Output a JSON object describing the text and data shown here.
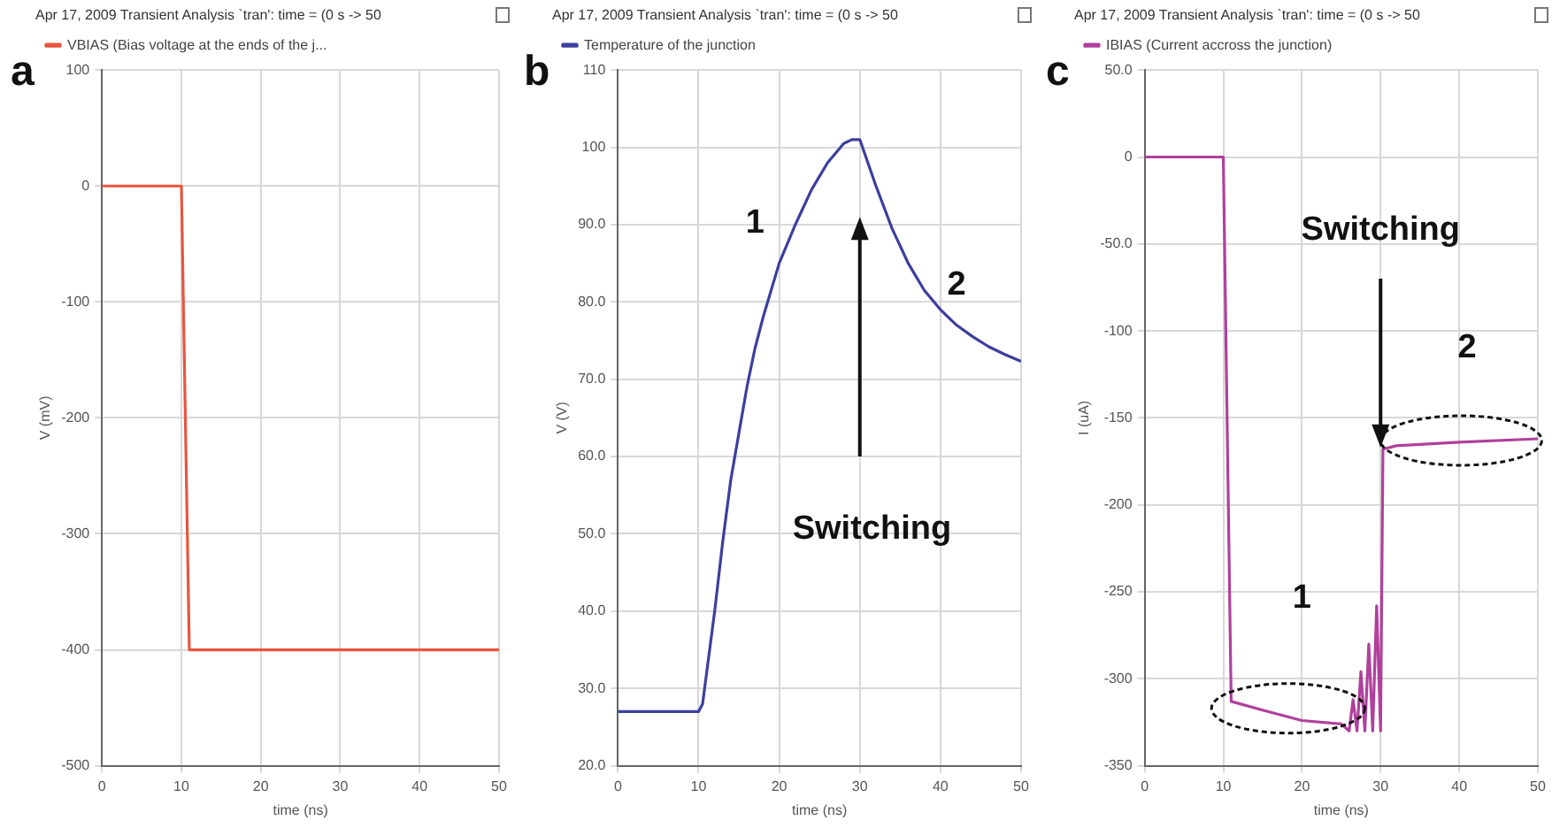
{
  "chart_data": [
    {
      "type": "line",
      "title": "Apr 17, 2009 Transient Analysis `tran': time = (0 s -> 50",
      "xlabel": "time (ns)",
      "ylabel": "V (mV)",
      "legend": "top left",
      "grid": true,
      "marker": "none",
      "line_style": "solid",
      "xlim": [
        0,
        50
      ],
      "xticks": [
        0,
        10,
        20,
        30,
        40,
        50
      ],
      "ylim": [
        -500,
        100
      ],
      "yticks": [
        -500,
        -400,
        -300,
        -200,
        -100,
        0,
        100
      ],
      "annotations": [
        "a"
      ],
      "series": [
        {
          "name": "VBIAS (Bias voltage at the ends of the j...",
          "color": "#e8553f",
          "x": [
            0,
            10,
            11,
            50
          ],
          "values": [
            0,
            0,
            -400,
            -400
          ]
        }
      ]
    },
    {
      "type": "line",
      "title": "Apr 17, 2009 Transient Analysis `tran': time = (0 s -> 50",
      "xlabel": "time (ns)",
      "ylabel": "V (V)",
      "legend": "top left",
      "grid": true,
      "marker": "none",
      "line_style": "solid",
      "xlim": [
        0,
        50
      ],
      "xticks": [
        0,
        10,
        20,
        30,
        40,
        50
      ],
      "ylim": [
        20,
        110
      ],
      "yticks": [
        {
          "value": 20,
          "label": "20.0"
        },
        {
          "value": 30,
          "label": "30.0"
        },
        {
          "value": 40,
          "label": "40.0"
        },
        {
          "value": 50,
          "label": "50.0"
        },
        {
          "value": 60,
          "label": "60.0"
        },
        {
          "value": 70,
          "label": "70.0"
        },
        {
          "value": 80,
          "label": "80.0"
        },
        {
          "value": 90,
          "label": "90.0"
        },
        100,
        110
      ],
      "annotations": [
        "b",
        "1",
        "2",
        "Switching"
      ],
      "series": [
        {
          "name": "Temperature of the junction",
          "color": "#3c3f9e",
          "x": [
            0,
            10,
            10.5,
            11,
            12,
            13,
            14,
            15,
            16,
            17,
            18,
            20,
            22,
            24,
            26,
            28,
            29,
            30,
            31,
            32,
            34,
            36,
            38,
            40,
            42,
            44,
            46,
            48,
            50
          ],
          "values": [
            27,
            27,
            28,
            32,
            40,
            49,
            57,
            63,
            69,
            74,
            78,
            85,
            90,
            94.5,
            98,
            100.5,
            101,
            101,
            98,
            95,
            89.5,
            85,
            81.5,
            79,
            77,
            75.5,
            74.2,
            73.2,
            72.3
          ]
        }
      ]
    },
    {
      "type": "line",
      "title": "Apr 17, 2009 Transient Analysis `tran': time = (0 s -> 50",
      "xlabel": "time (ns)",
      "ylabel": "I (uA)",
      "legend": "top left",
      "grid": true,
      "marker": "none",
      "line_style": "solid",
      "xlim": [
        0,
        50
      ],
      "xticks": [
        0,
        10,
        20,
        30,
        40,
        50
      ],
      "ylim": [
        -350,
        50
      ],
      "yticks": [
        -350,
        -300,
        -250,
        -200,
        -150,
        -100,
        {
          "value": -50,
          "label": "-50.0"
        },
        0,
        {
          "value": 50,
          "label": "50.0"
        }
      ],
      "annotations": [
        "c",
        "Switching",
        "1",
        "2"
      ],
      "series": [
        {
          "name": "IBIAS (Current accross the junction)",
          "color": "#b0409c",
          "x": [
            0,
            10,
            11,
            15,
            20,
            25,
            26,
            26.5,
            27,
            27.5,
            28,
            28.5,
            29,
            29.5,
            30,
            30.3,
            32,
            40,
            50
          ],
          "values": [
            0,
            0,
            -313,
            -318,
            -324,
            -326,
            -330,
            -312,
            -330,
            -296,
            -330,
            -280,
            -330,
            -258,
            -330,
            -168,
            -166,
            -164,
            -162
          ]
        }
      ]
    }
  ]
}
